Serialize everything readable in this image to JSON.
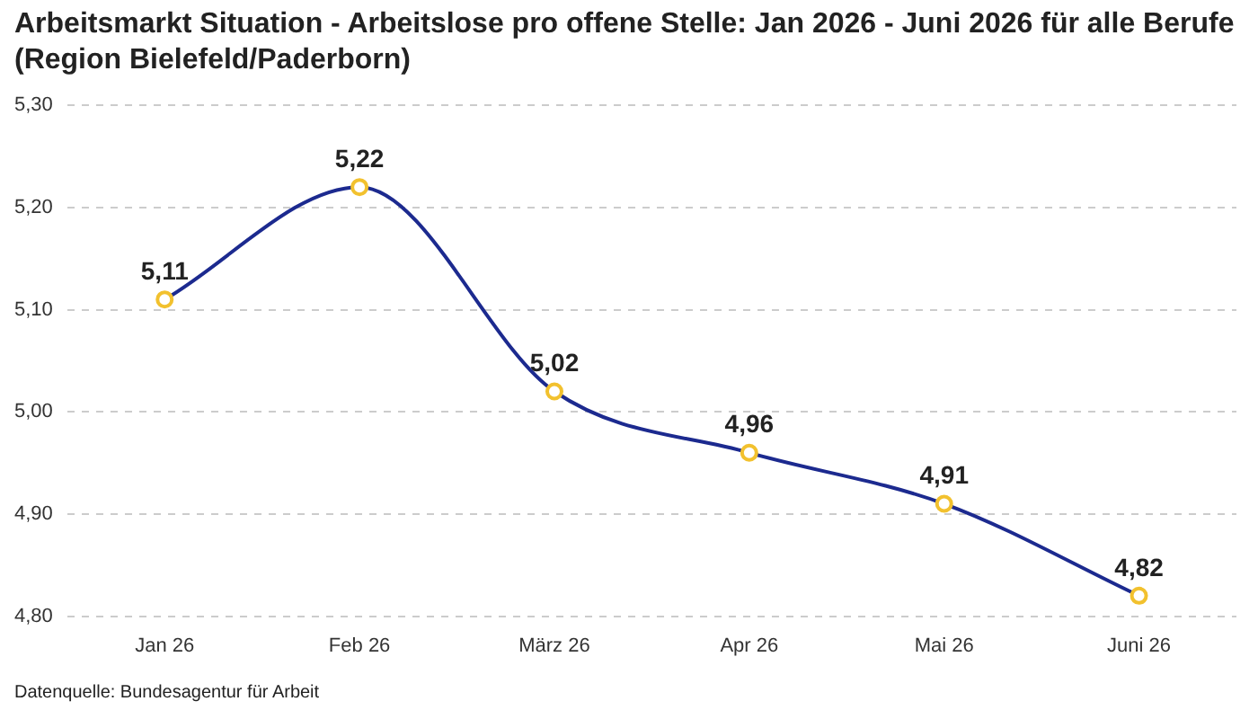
{
  "chart_data": {
    "type": "line",
    "title": "Arbeitsmarkt Situation - Arbeitslose pro offene Stelle: Jan 2026 - Juni 2026 für alle Berufe (Region Bielefeld/Paderborn)",
    "categories": [
      "Jan 26",
      "Feb 26",
      "März 26",
      "Apr 26",
      "Mai 26",
      "Juni 26"
    ],
    "series": [
      {
        "color": "#1c2a8f",
        "values": [
          5.11,
          5.22,
          5.02,
          4.96,
          4.91,
          4.82
        ],
        "value_labels": [
          "5,11",
          "5,22",
          "5,02",
          "4,96",
          "4,91",
          "4,82"
        ],
        "colors": [
          "#f2c12e",
          "#f2c12e",
          "#f2c12e",
          "#f2c12e",
          "#f2c12e",
          "#f2c12e"
        ]
      }
    ],
    "ylim": [
      4.8,
      5.3
    ],
    "yticks": [
      {
        "value": 4.8,
        "label": "4,80"
      },
      {
        "value": 4.9,
        "label": "4,90"
      },
      {
        "value": 5.0,
        "label": "5,00"
      },
      {
        "value": 5.1,
        "label": "5,10"
      },
      {
        "value": 5.2,
        "label": "5,20"
      },
      {
        "value": 5.3,
        "label": "5,30"
      }
    ],
    "grid": "y",
    "marker": "circle",
    "line_style": "solid",
    "legend": false,
    "annotations": [
      "Datenquelle: Bundesagentur für Arbeit"
    ]
  }
}
